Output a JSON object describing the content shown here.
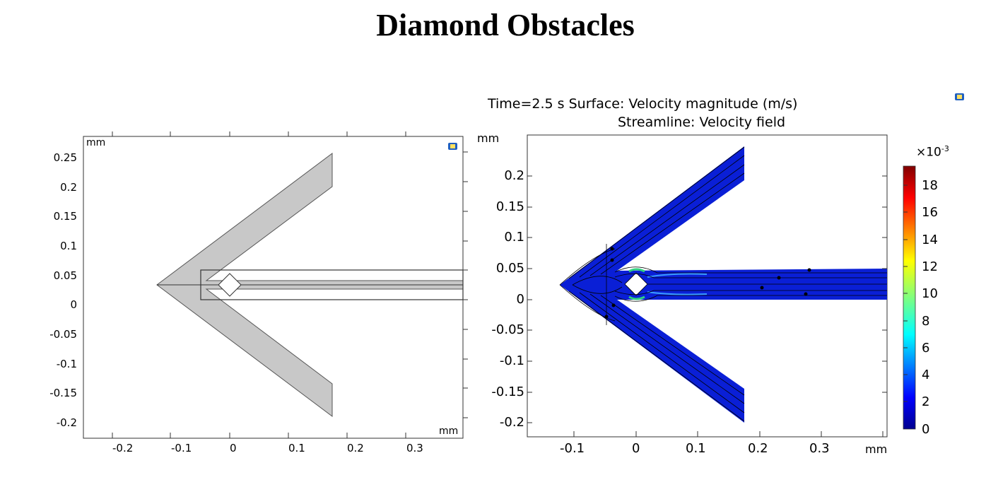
{
  "title": "Diamond Obstacles",
  "left_plot": {
    "x_ticks": [
      "-0.2",
      "-0.1",
      "0",
      "0.1",
      "0.2",
      "0.3"
    ],
    "y_ticks": [
      "0.25",
      "0.2",
      "0.15",
      "0.1",
      "0.05",
      "0",
      "-0.05",
      "-0.1",
      "-0.15",
      "-0.2"
    ],
    "x_unit": "mm",
    "y_unit": "mm",
    "fill_color": "#c8c8c8"
  },
  "right_plot": {
    "title_line1": "Time=2.5 s   Surface: Velocity magnitude (m/s)",
    "title_line2": "Streamline: Velocity field",
    "x_ticks": [
      "-0.1",
      "0",
      "0.1",
      "0.2",
      "0.3"
    ],
    "y_ticks": [
      "0.2",
      "0.15",
      "0.1",
      "0.05",
      "0",
      "-0.05",
      "-0.1",
      "-0.15",
      "-0.2"
    ],
    "x_unit": "mm",
    "y_unit": "mm",
    "fill_color": "#0a1fd6"
  },
  "colorbar": {
    "multiplier_base": "×10",
    "multiplier_exp": "-3",
    "ticks": [
      "18",
      "16",
      "14",
      "12",
      "10",
      "8",
      "6",
      "4",
      "2",
      "0"
    ]
  },
  "icons": [
    "comsol-icon",
    "comsol-icon"
  ]
}
